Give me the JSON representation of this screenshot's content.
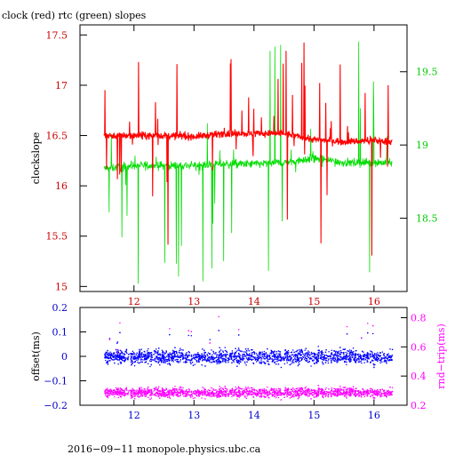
{
  "chart_data": [
    {
      "type": "line",
      "title": "clock (red) rtc (green) slopes",
      "xlim": [
        11.1,
        16.55
      ],
      "x_ticks": [
        12,
        13,
        14,
        15,
        16
      ],
      "x_tick_labels": [
        "12",
        "13",
        "14",
        "15",
        "16"
      ],
      "ylabel_left": "clockslope",
      "ylim_left": [
        14.95,
        17.6
      ],
      "y_ticks_left": [
        15,
        15.5,
        16,
        16.5,
        17,
        17.5
      ],
      "y_tick_labels_left": [
        "15",
        "15.5",
        "16",
        "16.5",
        "17",
        "17.5"
      ],
      "ylim_right": [
        18.0,
        19.82
      ],
      "y_ticks_right": [
        18.5,
        19,
        19.5
      ],
      "y_tick_labels_right": [
        "18.5",
        "19",
        "19.5"
      ],
      "series": [
        {
          "color": "#ff0000",
          "axis": "left",
          "x_range": [
            11.5,
            16.3
          ],
          "x": [
            11.5,
            12.0,
            12.5,
            13.0,
            13.5,
            14.0,
            14.5,
            15.0,
            15.5,
            16.0,
            16.3
          ],
          "values": [
            16.5,
            16.5,
            16.5,
            16.49,
            16.52,
            16.52,
            16.52,
            16.46,
            16.44,
            16.45,
            16.44
          ],
          "noise": 0.03,
          "spike_high": 17.45,
          "spike_low": 15.05
        },
        {
          "color": "#00dd00",
          "axis": "right",
          "x_range": [
            11.5,
            16.3
          ],
          "x": [
            11.5,
            12.0,
            12.5,
            13.0,
            13.5,
            14.0,
            14.5,
            15.0,
            15.5,
            16.0,
            16.3
          ],
          "values": [
            18.84,
            18.86,
            18.86,
            18.86,
            18.87,
            18.87,
            18.88,
            18.91,
            18.88,
            18.88,
            18.88
          ],
          "noise": 0.025,
          "spike_high": 19.72,
          "spike_low": 18.05
        }
      ]
    },
    {
      "type": "scatter",
      "xlim": [
        11.1,
        16.55
      ],
      "x_ticks": [
        12,
        13,
        14,
        15,
        16
      ],
      "x_tick_labels": [
        "12",
        "13",
        "14",
        "15",
        "16"
      ],
      "ylabel_left": "offset(ms)",
      "ylim_left": [
        -0.2,
        0.2
      ],
      "y_ticks_left": [
        -0.2,
        -0.1,
        0,
        0.1,
        0.2
      ],
      "y_tick_labels_left": [
        "−0.2",
        "−0.1",
        "0",
        "0.1",
        "0.2"
      ],
      "ylabel_right": "rnd−trip(ms)",
      "ylim_right": [
        0.2,
        0.87
      ],
      "y_ticks_right": [
        0.2,
        0.4,
        0.6,
        0.8
      ],
      "y_tick_labels_right": [
        "0.2",
        "0.4",
        "0.6",
        "0.8"
      ],
      "series": [
        {
          "color": "#0000ff",
          "axis": "left",
          "x_range": [
            11.5,
            16.3
          ],
          "center": 0.0,
          "spread": 0.035,
          "outlier_max": 0.11
        },
        {
          "color": "#ff00ff",
          "axis": "right",
          "x_range": [
            11.5,
            16.3
          ],
          "center": 0.29,
          "spread": 0.04,
          "outlier_max": 0.82
        }
      ]
    }
  ],
  "footer": "2016−09−11 monopole.physics.ubc.ca"
}
